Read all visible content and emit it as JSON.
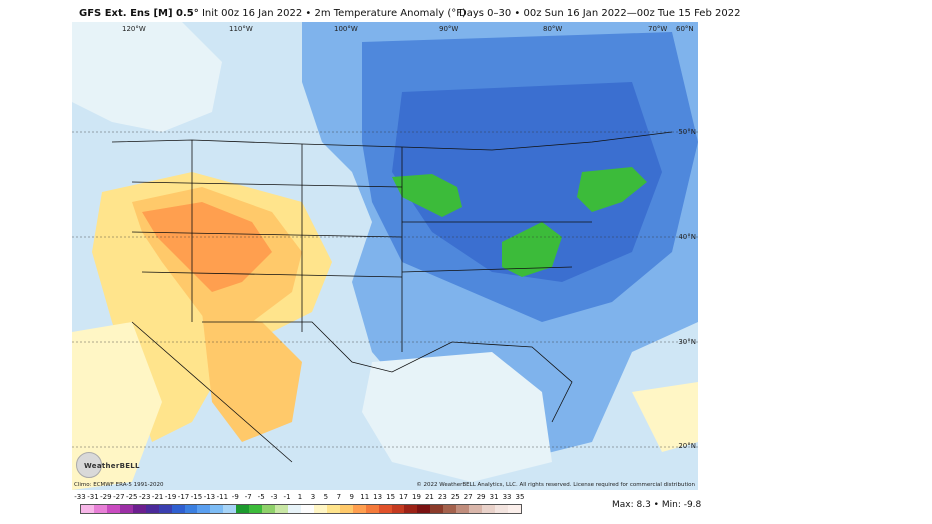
{
  "header": {
    "model": "GFS Ext. Ens [M] 0.5°",
    "init": "Init 00z 16 Jan 2022",
    "field": "2m Temperature Anomaly (°F)",
    "valid": "Days 0–30 • 00z Sun 16 Jan 2022—00z Tue 15 Feb 2022"
  },
  "map": {
    "lon_labels": [
      "120°W",
      "110°W",
      "100°W",
      "90°W",
      "80°W",
      "70°W",
      "60°N"
    ],
    "lat_labels": [
      "50°N",
      "40°N",
      "30°N",
      "20°N"
    ],
    "climo": "Climo: ECMWF ERA-5 1991-2020",
    "copyright": "© 2022 WeatherBELL Analytics, LLC. All rights reserved. License required for commercial distribution",
    "logo": "WeatherBELL"
  },
  "scale": {
    "labels": [
      "-33",
      "-31",
      "-29",
      "-27",
      "-25",
      "-23",
      "-21",
      "-19",
      "-17",
      "-15",
      "-13",
      "-11",
      "-9",
      "-7",
      "-5",
      "-3",
      "-1",
      "1",
      "3",
      "5",
      "7",
      "9",
      "11",
      "13",
      "15",
      "17",
      "19",
      "21",
      "23",
      "25",
      "27",
      "29",
      "31",
      "33",
      "35"
    ],
    "colors": [
      "#f7b6e8",
      "#e77fd6",
      "#c94bc0",
      "#9b2fa5",
      "#6c1f8f",
      "#4b2a9a",
      "#3a3fb0",
      "#2f5fd0",
      "#3b7fe0",
      "#5a9ff0",
      "#7dbcf5",
      "#a7d4f7",
      "#1c9a2e",
      "#3cbb3a",
      "#8fd16a",
      "#c9e7a5",
      "#e7f3f8",
      "#fdfdfd",
      "#fff6c5",
      "#ffe48c",
      "#ffc96a",
      "#ff9f4f",
      "#f47a3a",
      "#e0512a",
      "#c43a20",
      "#9c2216",
      "#7a1212",
      "#8b3b2a",
      "#a4624d",
      "#c08d7c",
      "#d9b6aa",
      "#e9d2ca",
      "#f3e4df",
      "#fbefeb"
    ],
    "maxmin": "Max: 8.3 • Min: -9.8"
  }
}
